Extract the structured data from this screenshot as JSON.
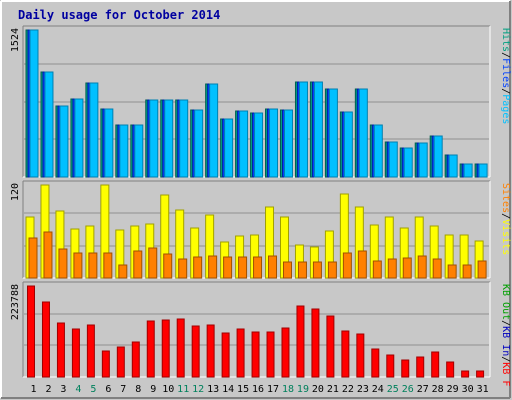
{
  "title": "Daily usage for October 2014",
  "colors": {
    "background": "#C8C8C8",
    "title_text": "#0000A0",
    "pages": "#00C0FF",
    "files": "#0040FF",
    "hits": "#00A080",
    "visits": "#FFFF00",
    "sites": "#FF8000",
    "kb_in": "#0000C0",
    "kb_out": "#00A000",
    "kb_f": "#FF0000",
    "weekend_label": "#00805C",
    "day_label": "#000000"
  },
  "chart_data": [
    {
      "type": "bar",
      "panel": "top",
      "ymax_label": "1524",
      "ylim": [
        0,
        1524
      ],
      "right_labels": [
        {
          "text": "Pages",
          "color_key": "pages"
        },
        {
          "text": "Files",
          "color_key": "files"
        },
        {
          "text": "Hits",
          "color_key": "hits"
        }
      ],
      "categories": [
        "1",
        "2",
        "3",
        "4",
        "5",
        "6",
        "7",
        "8",
        "9",
        "10",
        "11",
        "12",
        "13",
        "14",
        "15",
        "16",
        "17",
        "18",
        "19",
        "20",
        "21",
        "22",
        "23",
        "24",
        "25",
        "26",
        "27",
        "28",
        "29",
        "30",
        "31"
      ],
      "weekend_days": [
        4,
        5,
        11,
        12,
        18,
        19,
        25,
        26
      ],
      "series": [
        {
          "name": "Hits",
          "color_key": "hits",
          "values": [
            1524,
            1092,
            731,
            807,
            977,
            706,
            536,
            536,
            799,
            799,
            799,
            692,
            968,
            602,
            686,
            663,
            702,
            692,
            983,
            981,
            916,
            674,
            911,
            536,
            362,
            297,
            349,
            425,
            225,
            139,
            134
          ]
        },
        {
          "name": "Files",
          "color_key": "files",
          "values": [
            1524,
            1092,
            731,
            807,
            977,
            706,
            536,
            536,
            799,
            799,
            799,
            692,
            968,
            602,
            686,
            663,
            702,
            692,
            983,
            981,
            916,
            674,
            911,
            536,
            362,
            297,
            349,
            425,
            225,
            139,
            134
          ]
        },
        {
          "name": "Pages",
          "color_key": "pages",
          "values": [
            1524,
            1092,
            731,
            807,
            977,
            706,
            536,
            536,
            799,
            799,
            799,
            692,
            968,
            602,
            686,
            663,
            702,
            692,
            983,
            981,
            916,
            674,
            911,
            536,
            362,
            297,
            349,
            425,
            225,
            139,
            134
          ]
        }
      ]
    },
    {
      "type": "bar",
      "panel": "middle",
      "ymax_label": "120",
      "ylim": [
        0,
        120
      ],
      "right_labels": [
        {
          "text": "Visits",
          "color_key": "visits"
        },
        {
          "text": "Sites",
          "color_key": "sites"
        }
      ],
      "series": [
        {
          "name": "Visits",
          "color_key": "visits",
          "values": [
            79,
            120,
            87,
            63,
            67,
            120,
            62,
            67,
            70,
            107,
            88,
            64,
            81,
            47,
            54,
            56,
            92,
            79,
            42,
            40,
            60,
            108,
            91,
            69,
            79,
            65,
            79,
            67,
            55,
            56,
            48
          ]
        },
        {
          "name": "Sites",
          "color_key": "sites",
          "values": [
            51,
            59,
            37,
            32,
            32,
            32,
            17,
            35,
            39,
            31,
            25,
            27,
            29,
            27,
            27,
            27,
            29,
            21,
            21,
            20,
            21,
            32,
            35,
            22,
            24,
            26,
            29,
            25,
            17,
            17,
            22
          ]
        }
      ]
    },
    {
      "type": "bar",
      "panel": "bottom",
      "ymax_label": "223788",
      "ylim": [
        0,
        223788
      ],
      "right_labels": [
        {
          "text": "KB F",
          "color_key": "kb_f"
        },
        {
          "text": "KB In",
          "color_key": "kb_in"
        },
        {
          "text": "KB Out",
          "color_key": "kb_out"
        }
      ],
      "series": [
        {
          "name": "KB F",
          "color_key": "kb_f",
          "values": [
            223788,
            185000,
            133000,
            117000,
            128000,
            63000,
            75000,
            87000,
            138000,
            139000,
            143000,
            126000,
            129000,
            107000,
            117000,
            111000,
            111000,
            121000,
            175000,
            166000,
            150000,
            112000,
            106000,
            68000,
            54000,
            42000,
            50000,
            62000,
            36000,
            14000,
            14000
          ]
        }
      ]
    }
  ]
}
